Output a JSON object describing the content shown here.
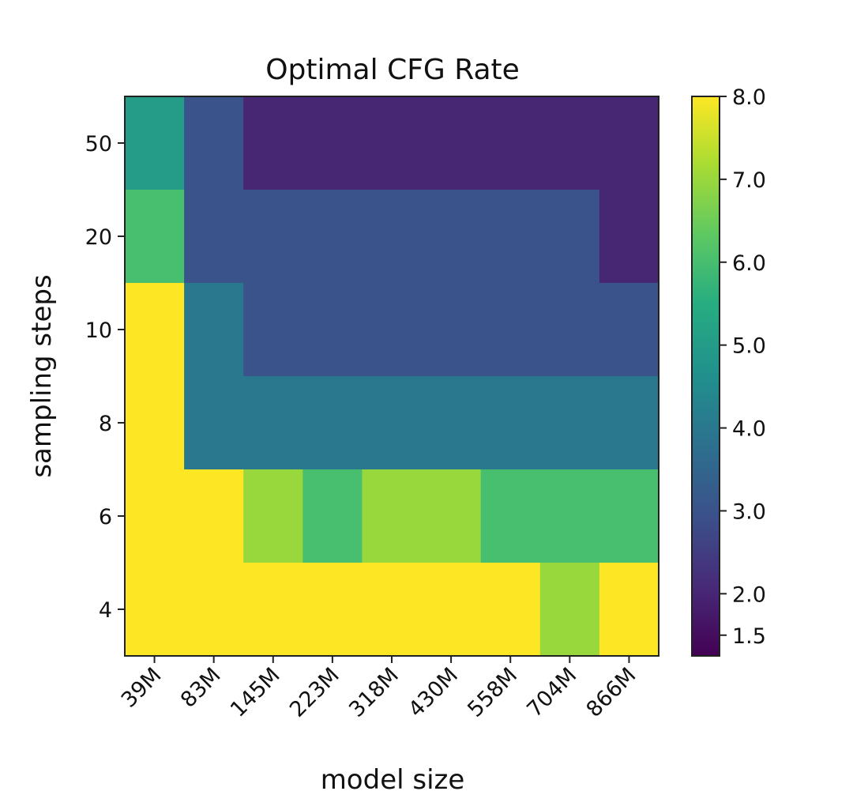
{
  "chart_data": {
    "type": "heatmap",
    "title": "Optimal CFG Rate",
    "xlabel": "model size",
    "ylabel": "sampling steps",
    "x_categories": [
      "39M",
      "83M",
      "145M",
      "223M",
      "318M",
      "430M",
      "558M",
      "704M",
      "866M"
    ],
    "y_categories": [
      "50",
      "20",
      "10",
      "8",
      "6",
      "4"
    ],
    "values": [
      [
        5.0,
        3.0,
        2.0,
        2.0,
        2.0,
        2.0,
        2.0,
        2.0,
        2.0
      ],
      [
        6.0,
        3.0,
        3.0,
        3.0,
        3.0,
        3.0,
        3.0,
        3.0,
        2.0
      ],
      [
        8.0,
        4.0,
        3.0,
        3.0,
        3.0,
        3.0,
        3.0,
        3.0,
        3.0
      ],
      [
        8.0,
        4.0,
        4.0,
        4.0,
        4.0,
        4.0,
        4.0,
        4.0,
        4.0
      ],
      [
        8.0,
        8.0,
        7.0,
        6.0,
        7.0,
        7.0,
        6.0,
        6.0,
        6.0
      ],
      [
        8.0,
        8.0,
        8.0,
        8.0,
        8.0,
        8.0,
        8.0,
        7.0,
        8.0
      ]
    ],
    "colormap": "viridis",
    "vmin": 1.25,
    "vmax": 8.0,
    "colorbar": {
      "ticks": [
        1.5,
        2.0,
        3.0,
        4.0,
        5.0,
        6.0,
        7.0,
        8.0
      ],
      "tick_labels": [
        "1.5",
        "2.0",
        "3.0",
        "4.0",
        "5.0",
        "6.0",
        "7.0",
        "8.0"
      ],
      "placement": "right"
    },
    "grid": false
  }
}
